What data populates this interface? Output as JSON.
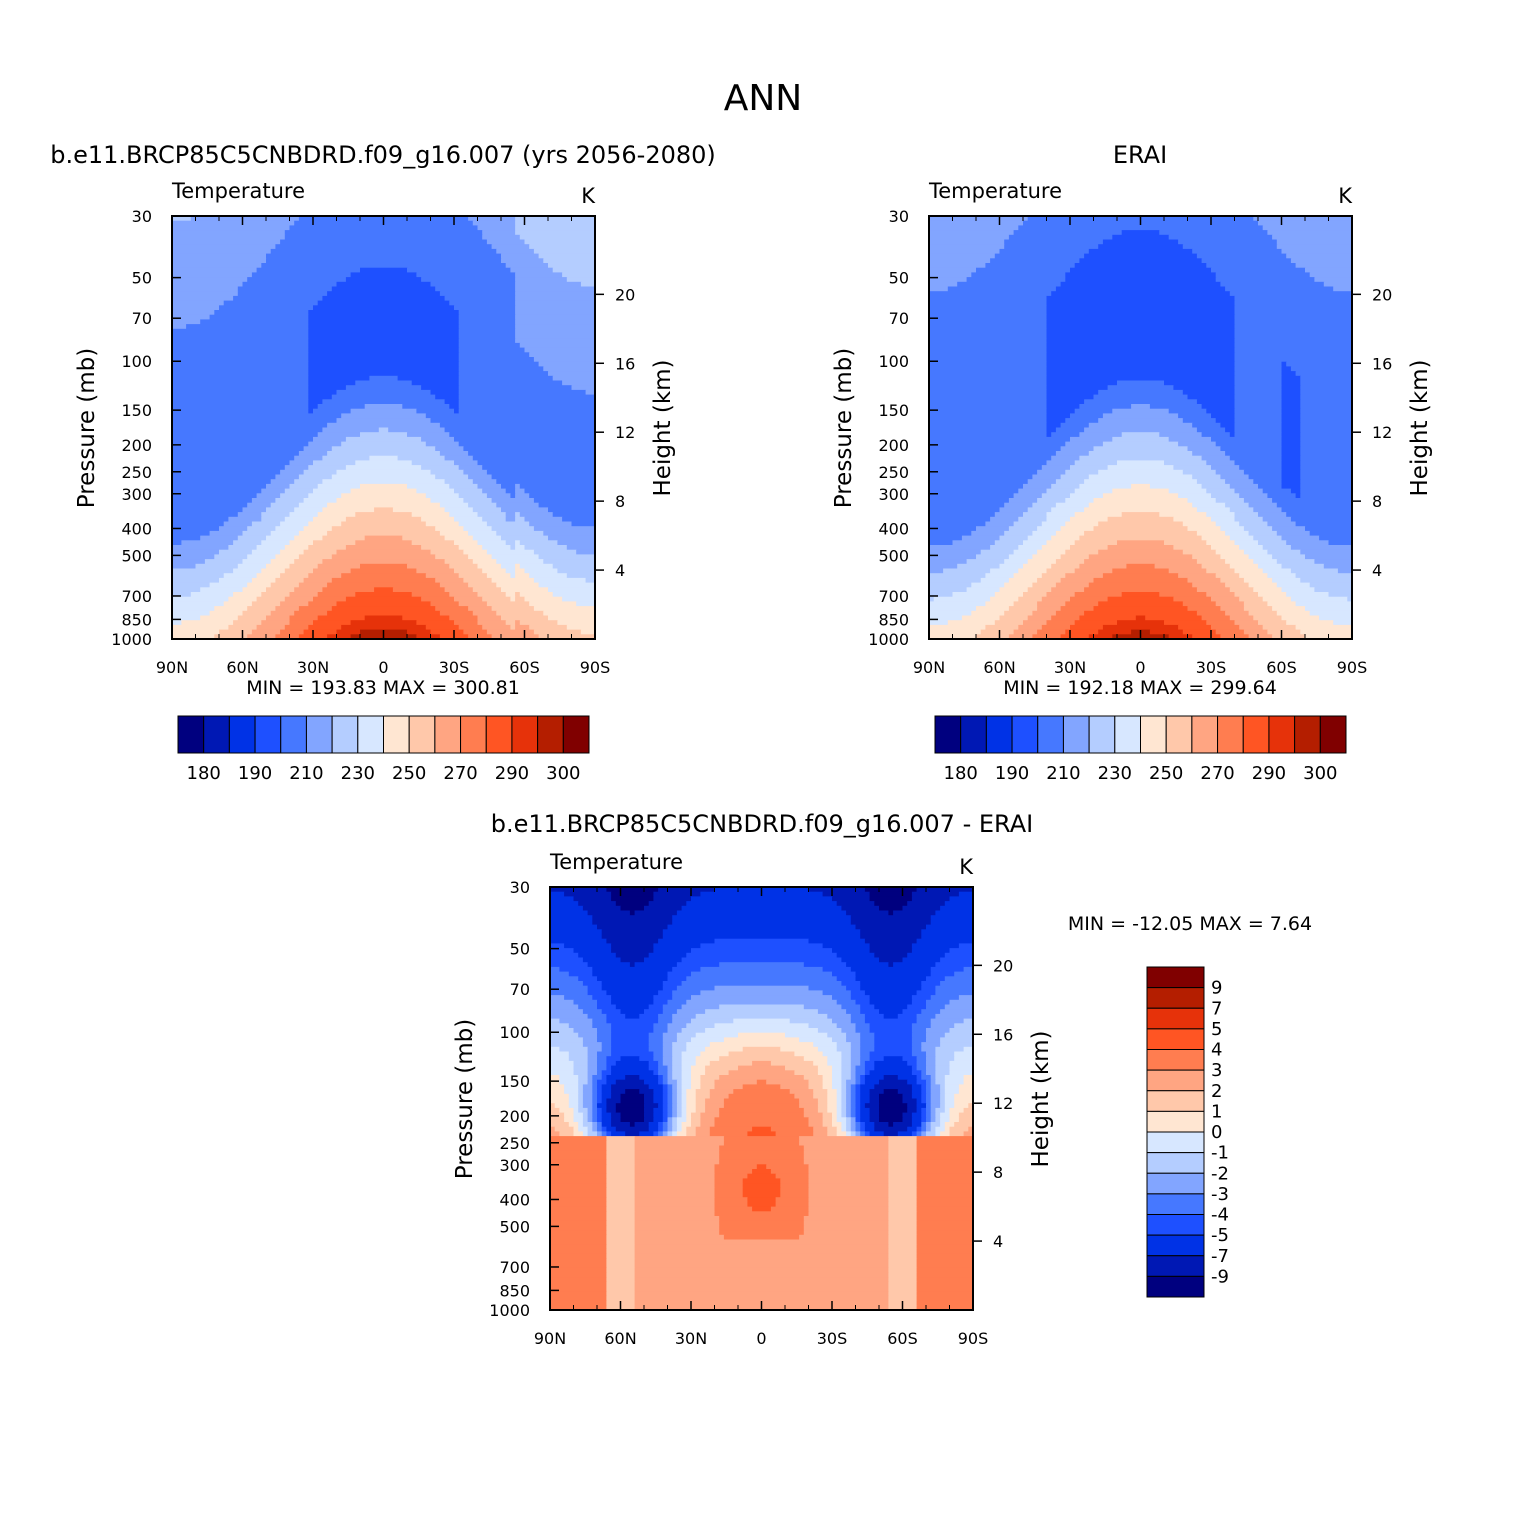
{
  "figure_title": "ANN",
  "colors": {
    "temperature_levels": [
      "#00007f",
      "#0018b4",
      "#0032e6",
      "#1e50ff",
      "#4678ff",
      "#82a5ff",
      "#b4cdff",
      "#d7e7ff",
      "#ffe6d2",
      "#ffc8aa",
      "#ffa582",
      "#ff7d50",
      "#ff5523",
      "#e6320a",
      "#b41e00",
      "#800000"
    ],
    "diff_levels": [
      "#00007f",
      "#0018b4",
      "#0032e6",
      "#1e50ff",
      "#4678ff",
      "#82a5ff",
      "#b4cdff",
      "#d7e7ff",
      "#ffe6d2",
      "#ffc8aa",
      "#ffa582",
      "#ff7d50",
      "#ff5523",
      "#e6320a",
      "#b41e00",
      "#800000"
    ]
  },
  "panels": [
    {
      "heading": "b.e11.BRCP85C5CNBDRD.f09_g16.007 (yrs 2056-2080)",
      "left_label": "Temperature",
      "right_label": "K",
      "ylabel": "Pressure (mb)",
      "y2label": "Height (km)",
      "min_max": "MIN = 193.83   MAX = 300.81"
    },
    {
      "heading": "ERAI",
      "left_label": "Temperature",
      "right_label": "K",
      "ylabel": "Pressure (mb)",
      "y2label": "Height (km)",
      "min_max": "MIN = 192.18   MAX = 299.64"
    },
    {
      "heading": "b.e11.BRCP85C5CNBDRD.f09_g16.007 - ERAI",
      "left_label": "Temperature",
      "right_label": "K",
      "ylabel": "Pressure (mb)",
      "y2label": "Height (km)",
      "min_max": "MIN = -12.05   MAX =    7.64"
    }
  ],
  "chart_data": [
    {
      "type": "heatmap",
      "title": "b.e11.BRCP85C5CNBDRD.f09_g16.007 (yrs 2056-2080)",
      "xlabel": "",
      "ylabel": "Pressure (mb)",
      "y2label": "Height (km)",
      "x_ticks": [
        "90N",
        "60N",
        "30N",
        "0",
        "30S",
        "60S",
        "90S"
      ],
      "y_ticks": [
        "30",
        "50",
        "70",
        "100",
        "150",
        "200",
        "250",
        "300",
        "400",
        "500",
        "700",
        "850",
        "1000"
      ],
      "y2_ticks": [
        "20",
        "16",
        "12",
        "8",
        "4"
      ],
      "y_scale": "log",
      "ylim": [
        1000,
        30
      ],
      "xlim": [
        90,
        -90
      ],
      "units": "K",
      "min": 193.83,
      "max": 300.81,
      "colorbar_labels": [
        "180",
        "190",
        "210",
        "230",
        "250",
        "270",
        "290",
        "300"
      ],
      "contour_levels": [
        180,
        185,
        190,
        200,
        210,
        220,
        230,
        240,
        250,
        260,
        270,
        280,
        290,
        295,
        300
      ]
    },
    {
      "type": "heatmap",
      "title": "ERAI",
      "xlabel": "",
      "ylabel": "Pressure (mb)",
      "y2label": "Height (km)",
      "x_ticks": [
        "90N",
        "60N",
        "30N",
        "0",
        "30S",
        "60S",
        "90S"
      ],
      "y_ticks": [
        "30",
        "50",
        "70",
        "100",
        "150",
        "200",
        "250",
        "300",
        "400",
        "500",
        "700",
        "850",
        "1000"
      ],
      "y2_ticks": [
        "20",
        "16",
        "12",
        "8",
        "4"
      ],
      "y_scale": "log",
      "ylim": [
        1000,
        30
      ],
      "xlim": [
        90,
        -90
      ],
      "units": "K",
      "min": 192.18,
      "max": 299.64,
      "colorbar_labels": [
        "180",
        "190",
        "210",
        "230",
        "250",
        "270",
        "290",
        "300"
      ],
      "contour_levels": [
        180,
        185,
        190,
        200,
        210,
        220,
        230,
        240,
        250,
        260,
        270,
        280,
        290,
        295,
        300
      ]
    },
    {
      "type": "heatmap",
      "title": "b.e11.BRCP85C5CNBDRD.f09_g16.007 - ERAI",
      "xlabel": "",
      "ylabel": "Pressure (mb)",
      "y2label": "Height (km)",
      "x_ticks": [
        "90N",
        "60N",
        "30N",
        "0",
        "30S",
        "60S",
        "90S"
      ],
      "y_ticks": [
        "30",
        "50",
        "70",
        "100",
        "150",
        "200",
        "250",
        "300",
        "400",
        "500",
        "700",
        "850",
        "1000"
      ],
      "y2_ticks": [
        "20",
        "16",
        "12",
        "8",
        "4"
      ],
      "y_scale": "log",
      "ylim": [
        1000,
        30
      ],
      "xlim": [
        90,
        -90
      ],
      "units": "K",
      "min": -12.05,
      "max": 7.64,
      "colorbar_labels": [
        "9",
        "7",
        "5",
        "4",
        "3",
        "2",
        "1",
        "0",
        "-1",
        "-2",
        "-3",
        "-4",
        "-5",
        "-7",
        "-9"
      ],
      "contour_levels": [
        -9,
        -7,
        -5,
        -4,
        -3,
        -2,
        -1,
        0,
        1,
        2,
        3,
        4,
        5,
        7,
        9
      ]
    }
  ]
}
